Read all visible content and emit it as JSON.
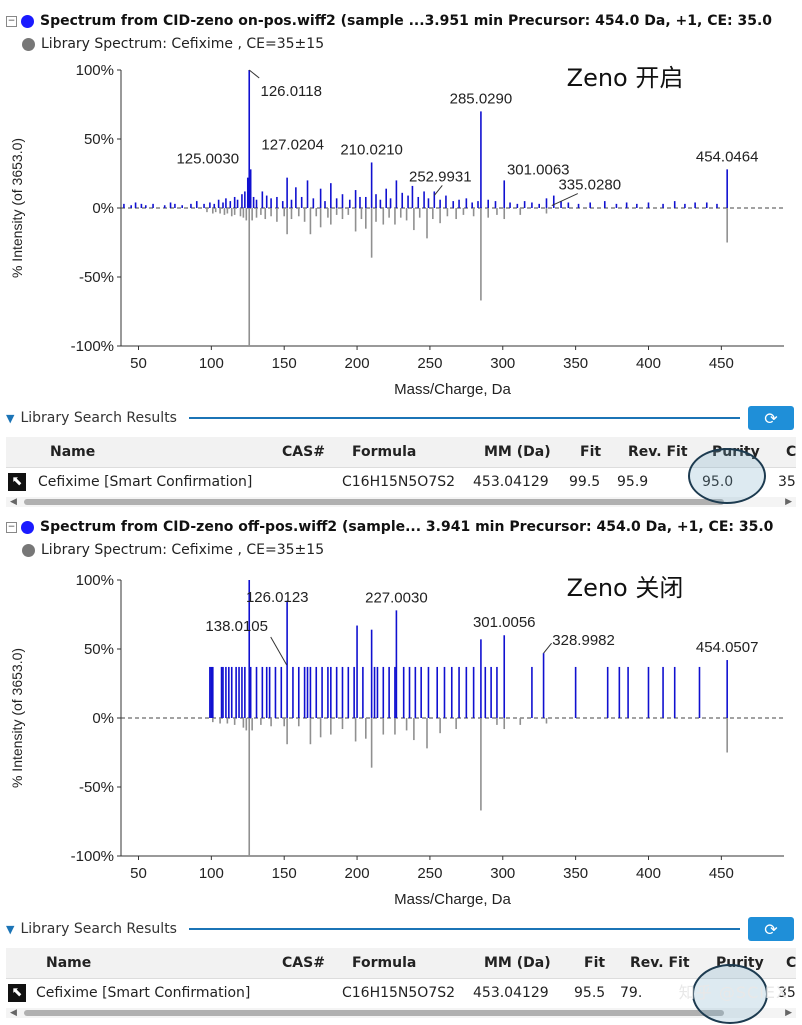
{
  "watermark": "知乎 @SCIEX",
  "panels": [
    {
      "spectrum_title": "Spectrum from CID-zeno on-pos.wiff2 (sample ...3.951 min Precursor: 454.0 Da, +1, CE: 35.0",
      "library_title": "Library Spectrum: Cefixime , CE=35±15",
      "annotation": "Zeno 开启",
      "lib_label": "Library Search Results",
      "table": {
        "headers": [
          "Name",
          "CAS#",
          "Formula",
          "MM (Da)",
          "Fit",
          "Rev. Fit",
          "Purity",
          "C"
        ],
        "row": [
          "Cefixime [Smart Confirmation]",
          "",
          "C16H15N5O7S2",
          "453.04129",
          "99.5",
          "95.9",
          "95.0",
          "35"
        ]
      }
    },
    {
      "spectrum_title": "Spectrum from CID-zeno off-pos.wiff2 (sample... 3.941 min Precursor: 454.0 Da, +1, CE: 35.0",
      "library_title": "Library Spectrum: Cefixime , CE=35±15",
      "annotation": "Zeno 关闭",
      "lib_label": "Library Search Results",
      "table": {
        "headers": [
          "Name",
          "CAS#",
          "Formula",
          "MM (Da)",
          "Fit",
          "Rev. Fit",
          "Purity",
          "C"
        ],
        "row": [
          "Cefixime [Smart Confirmation]",
          "",
          "C16H15N5O7S2",
          "453.04129",
          "95.5",
          "79.",
          "",
          "35"
        ]
      }
    }
  ],
  "chart_data": [
    {
      "type": "bar",
      "xlabel": "Mass/Charge, Da",
      "ylabel": "% Intensity (of 3653.0)",
      "xlim": [
        38,
        493
      ],
      "ylim": [
        -100,
        100
      ],
      "x_ticks": [
        50,
        100,
        150,
        200,
        250,
        300,
        350,
        400,
        450
      ],
      "y_ticks": [
        {
          "v": 100,
          "t": "100%"
        },
        {
          "v": 50,
          "t": "50%"
        },
        {
          "v": 0,
          "t": "0%"
        },
        {
          "v": -50,
          "t": "-50%"
        },
        {
          "v": -100,
          "t": "-100%"
        }
      ],
      "series": [
        {
          "color": "#1010d0",
          "x": [
            40,
            45,
            48,
            52,
            55,
            60,
            68,
            72,
            75,
            80,
            86,
            90,
            95,
            99,
            102,
            105,
            108,
            110,
            113,
            116,
            118,
            121,
            123,
            125,
            126,
            127,
            129,
            131,
            135,
            138,
            141,
            145,
            149,
            152,
            155,
            158,
            162,
            166,
            170,
            175,
            178,
            182,
            186,
            190,
            195,
            199,
            202,
            206,
            210,
            213,
            216,
            220,
            223,
            227,
            231,
            235,
            238,
            242,
            246,
            249,
            253,
            257,
            261,
            266,
            270,
            275,
            279,
            283,
            285,
            290,
            295,
            301,
            305,
            310,
            315,
            320,
            325,
            330,
            335,
            340,
            345,
            352,
            360,
            370,
            378,
            385,
            392,
            400,
            410,
            418,
            425,
            432,
            440,
            447,
            454
          ],
          "y": [
            3,
            2,
            4,
            3,
            2,
            3,
            2,
            4,
            3,
            2,
            3,
            5,
            3,
            4,
            3,
            6,
            4,
            7,
            5,
            8,
            6,
            10,
            12,
            22,
            100,
            28,
            8,
            6,
            12,
            9,
            7,
            8,
            5,
            22,
            6,
            15,
            8,
            20,
            7,
            14,
            5,
            18,
            7,
            10,
            6,
            13,
            8,
            8,
            33,
            10,
            6,
            14,
            7,
            20,
            11,
            9,
            16,
            8,
            12,
            7,
            12,
            6,
            9,
            5,
            6,
            7,
            4,
            5,
            70,
            6,
            5,
            20,
            4,
            3,
            5,
            4,
            3,
            7,
            9,
            5,
            4,
            3,
            4,
            5,
            3,
            4,
            3,
            4,
            3,
            5,
            3,
            4,
            4,
            3,
            28
          ]
        },
        {
          "color": "#909090",
          "x": [
            97,
            101,
            103,
            106,
            109,
            111,
            114,
            116,
            120,
            122,
            124,
            126,
            128,
            131,
            134,
            137,
            141,
            145,
            150,
            152,
            155,
            160,
            164,
            168,
            172,
            175,
            180,
            182,
            186,
            190,
            194,
            199,
            203,
            206,
            210,
            213,
            218,
            222,
            226,
            230,
            234,
            239,
            243,
            248,
            252,
            257,
            262,
            268,
            273,
            280,
            285,
            290,
            296,
            301,
            312,
            330,
            454
          ],
          "y": [
            -3,
            -4,
            -3,
            -4,
            -5,
            -4,
            -6,
            -5,
            -6,
            -7,
            -9,
            -100,
            -9,
            -7,
            -5,
            -8,
            -6,
            -10,
            -6,
            -19,
            -8,
            -6,
            -10,
            -19,
            -6,
            -14,
            -7,
            -12,
            -5,
            -8,
            -5,
            -17,
            -8,
            -15,
            -36,
            -10,
            -12,
            -7,
            -12,
            -7,
            -9,
            -16,
            -7,
            -22,
            -8,
            -11,
            -6,
            -8,
            -5,
            -6,
            -67,
            -7,
            -5,
            -8,
            -5,
            -4,
            -25
          ]
        }
      ],
      "labels": [
        {
          "x": 126,
          "v": 100,
          "t": "126.0118"
        },
        {
          "x": 125,
          "v": 22,
          "t": "125.0030"
        },
        {
          "x": 127,
          "v": 28,
          "t": "127.0204"
        },
        {
          "x": 210,
          "v": 33,
          "t": "210.0210"
        },
        {
          "x": 253,
          "v": 12,
          "t": "252.9931"
        },
        {
          "x": 285,
          "v": 70,
          "t": "285.0290"
        },
        {
          "x": 301,
          "v": 20,
          "t": "301.0063"
        },
        {
          "x": 335,
          "v": 9,
          "t": "335.0280"
        },
        {
          "x": 454,
          "v": 28,
          "t": "454.0464"
        }
      ]
    },
    {
      "type": "bar",
      "xlabel": "Mass/Charge, Da",
      "ylabel": "% Intensity (of 3653.0)",
      "xlim": [
        38,
        493
      ],
      "ylim": [
        -100,
        100
      ],
      "x_ticks": [
        50,
        100,
        150,
        200,
        250,
        300,
        350,
        400,
        450
      ],
      "y_ticks": [
        {
          "v": 100,
          "t": "100%"
        },
        {
          "v": 50,
          "t": "50%"
        },
        {
          "v": 0,
          "t": "0%"
        },
        {
          "v": -50,
          "t": "-50%"
        },
        {
          "v": -100,
          "t": "-100%"
        }
      ],
      "series": [
        {
          "color": "#1010d0",
          "x": [
            99,
            100,
            101,
            107,
            108,
            110,
            112,
            114,
            117,
            119,
            121,
            123,
            126,
            127,
            131,
            135,
            138,
            140,
            144,
            148,
            152,
            156,
            160,
            164,
            166,
            168,
            172,
            176,
            180,
            182,
            186,
            190,
            194,
            198,
            200,
            204,
            210,
            212,
            214,
            218,
            222,
            226,
            227,
            232,
            236,
            240,
            244,
            249,
            255,
            260,
            265,
            270,
            275,
            280,
            285,
            288,
            292,
            296,
            301,
            320,
            328,
            350,
            372,
            380,
            386,
            400,
            410,
            418,
            435,
            454
          ],
          "y": [
            37,
            37,
            37,
            37,
            37,
            37,
            37,
            37,
            37,
            37,
            37,
            37,
            100,
            37,
            37,
            37,
            37,
            37,
            37,
            37,
            85,
            37,
            37,
            37,
            37,
            37,
            37,
            37,
            37,
            37,
            37,
            37,
            37,
            37,
            67,
            37,
            64,
            37,
            37,
            37,
            37,
            37,
            78,
            37,
            37,
            37,
            37,
            37,
            37,
            37,
            37,
            37,
            37,
            37,
            57,
            37,
            37,
            37,
            60,
            37,
            47,
            37,
            37,
            37,
            37,
            37,
            37,
            37,
            37,
            42
          ]
        },
        {
          "color": "#909090",
          "x": [
            101,
            106,
            111,
            116,
            122,
            124,
            126,
            128,
            134,
            141,
            150,
            152,
            160,
            168,
            175,
            182,
            190,
            199,
            206,
            210,
            218,
            226,
            234,
            239,
            248,
            257,
            268,
            285,
            296,
            301,
            312,
            330,
            454
          ],
          "y": [
            -3,
            -4,
            -4,
            -5,
            -7,
            -9,
            -100,
            -9,
            -5,
            -6,
            -6,
            -19,
            -6,
            -19,
            -14,
            -12,
            -8,
            -17,
            -15,
            -36,
            -12,
            -12,
            -9,
            -16,
            -22,
            -11,
            -8,
            -67,
            -5,
            -8,
            -5,
            -4,
            -25
          ]
        }
      ],
      "labels": [
        {
          "x": 126,
          "v": 100,
          "t": "126.0123"
        },
        {
          "x": 138,
          "v": 37,
          "t": "138.0105"
        },
        {
          "x": 227,
          "v": 78,
          "t": "227.0030"
        },
        {
          "x": 301,
          "v": 60,
          "t": "301.0056"
        },
        {
          "x": 328,
          "v": 47,
          "t": "328.9982"
        },
        {
          "x": 454,
          "v": 42,
          "t": "454.0507"
        }
      ]
    }
  ]
}
